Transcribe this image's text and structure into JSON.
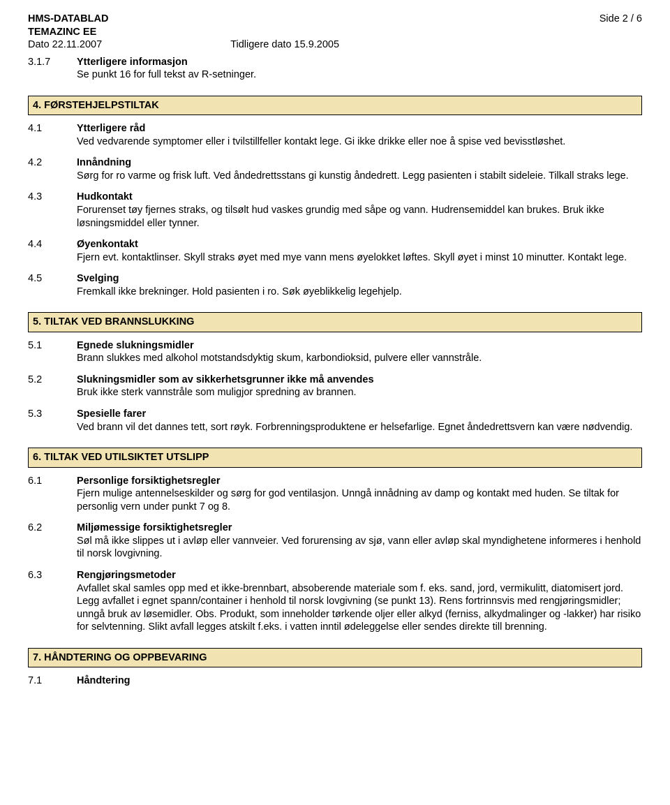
{
  "header": {
    "doc_title": "HMS-DATABLAD",
    "product": "TEMAZINC EE",
    "page_label": "Side  2 / 6",
    "date": "Dato 22.11.2007",
    "prev_date": "Tidligere dato 15.9.2005"
  },
  "s3_1_7": {
    "num": "3.1.7",
    "title": "Ytterligere informasjon",
    "text": "Se punkt 16 for full tekst av R-setninger."
  },
  "section4": {
    "heading": "4. FØRSTEHJELPSTILTAK",
    "s4_1": {
      "num": "4.1",
      "title": "Ytterligere råd",
      "text": "Ved vedvarende symptomer eller i tvilstillfeller kontakt lege. Gi ikke drikke eller noe å spise ved bevisstløshet."
    },
    "s4_2": {
      "num": "4.2",
      "title": "Innåndning",
      "text": "Sørg for ro varme og frisk luft. Ved åndedrettsstans gi kunstig åndedrett. Legg pasienten i stabilt sideleie. Tilkall straks lege."
    },
    "s4_3": {
      "num": "4.3",
      "title": "Hudkontakt",
      "text": "Forurenset tøy fjernes straks, og tilsølt hud vaskes grundig med såpe og vann. Hudrensemiddel kan brukes. Bruk ikke løsningsmiddel eller tynner."
    },
    "s4_4": {
      "num": "4.4",
      "title": "Øyenkontakt",
      "text": "Fjern evt. kontaktlinser. Skyll straks øyet med mye vann mens øyelokket løftes. Skyll øyet i minst 10 minutter. Kontakt lege."
    },
    "s4_5": {
      "num": "4.5",
      "title": "Svelging",
      "text": "Fremkall ikke brekninger. Hold pasienten i ro. Søk øyeblikkelig legehjelp."
    }
  },
  "section5": {
    "heading": "5. TILTAK VED BRANNSLUKKING",
    "s5_1": {
      "num": "5.1",
      "title": "Egnede slukningsmidler",
      "text": "Brann slukkes med alkohol motstandsdyktig skum, karbondioksid, pulvere eller vannstråle."
    },
    "s5_2": {
      "num": "5.2",
      "title": "Slukningsmidler som av sikkerhetsgrunner ikke må anvendes",
      "text": "Bruk ikke sterk vannstråle som muligjor spredning av brannen."
    },
    "s5_3": {
      "num": "5.3",
      "title": "Spesielle farer",
      "text": "Ved brann vil det dannes tett, sort røyk. Forbrenningsproduktene er helsefarlige. Egnet åndedrettsvern kan være nødvendig."
    }
  },
  "section6": {
    "heading": "6. TILTAK VED UTILSIKTET UTSLIPP",
    "s6_1": {
      "num": "6.1",
      "title": "Personlige forsiktighetsregler",
      "text": "Fjern mulige antennelseskilder og sørg for god ventilasjon. Unngå innådning av damp og kontakt med huden. Se tiltak for personlig vern under punkt 7 og 8."
    },
    "s6_2": {
      "num": "6.2",
      "title": "Miljømessige forsiktighetsregler",
      "text": "Søl må ikke slippes ut i avløp eller vannveier. Ved forurensing av sjø, vann eller avløp skal myndighetene informeres i henhold til norsk lovgivning."
    },
    "s6_3": {
      "num": "6.3",
      "title": "Rengjøringsmetoder",
      "text": "Avfallet skal samles opp med et ikke-brennbart, absoberende materiale som f. eks. sand, jord, vermikulitt, diatomisert jord. Legg avfallet i egnet spann/container i henhold til norsk lovgivning (se punkt 13). Rens fortrinnsvis med rengjøringsmidler; unngå bruk av løsemidler. Obs. Produkt, som inneholder tørkende oljer eller alkyd (ferniss, alkydmalinger og -lakker) har risiko for selvtenning. Slikt avfall legges atskilt f.eks. i vatten inntil ødeleggelse eller sendes direkte till brenning."
    }
  },
  "section7": {
    "heading": "7. HÅNDTERING OG OPPBEVARING",
    "s7_1": {
      "num": "7.1",
      "title": "Håndtering"
    }
  },
  "colors": {
    "section_bg": "#f2e3b3",
    "border": "#000000",
    "text": "#000000"
  }
}
